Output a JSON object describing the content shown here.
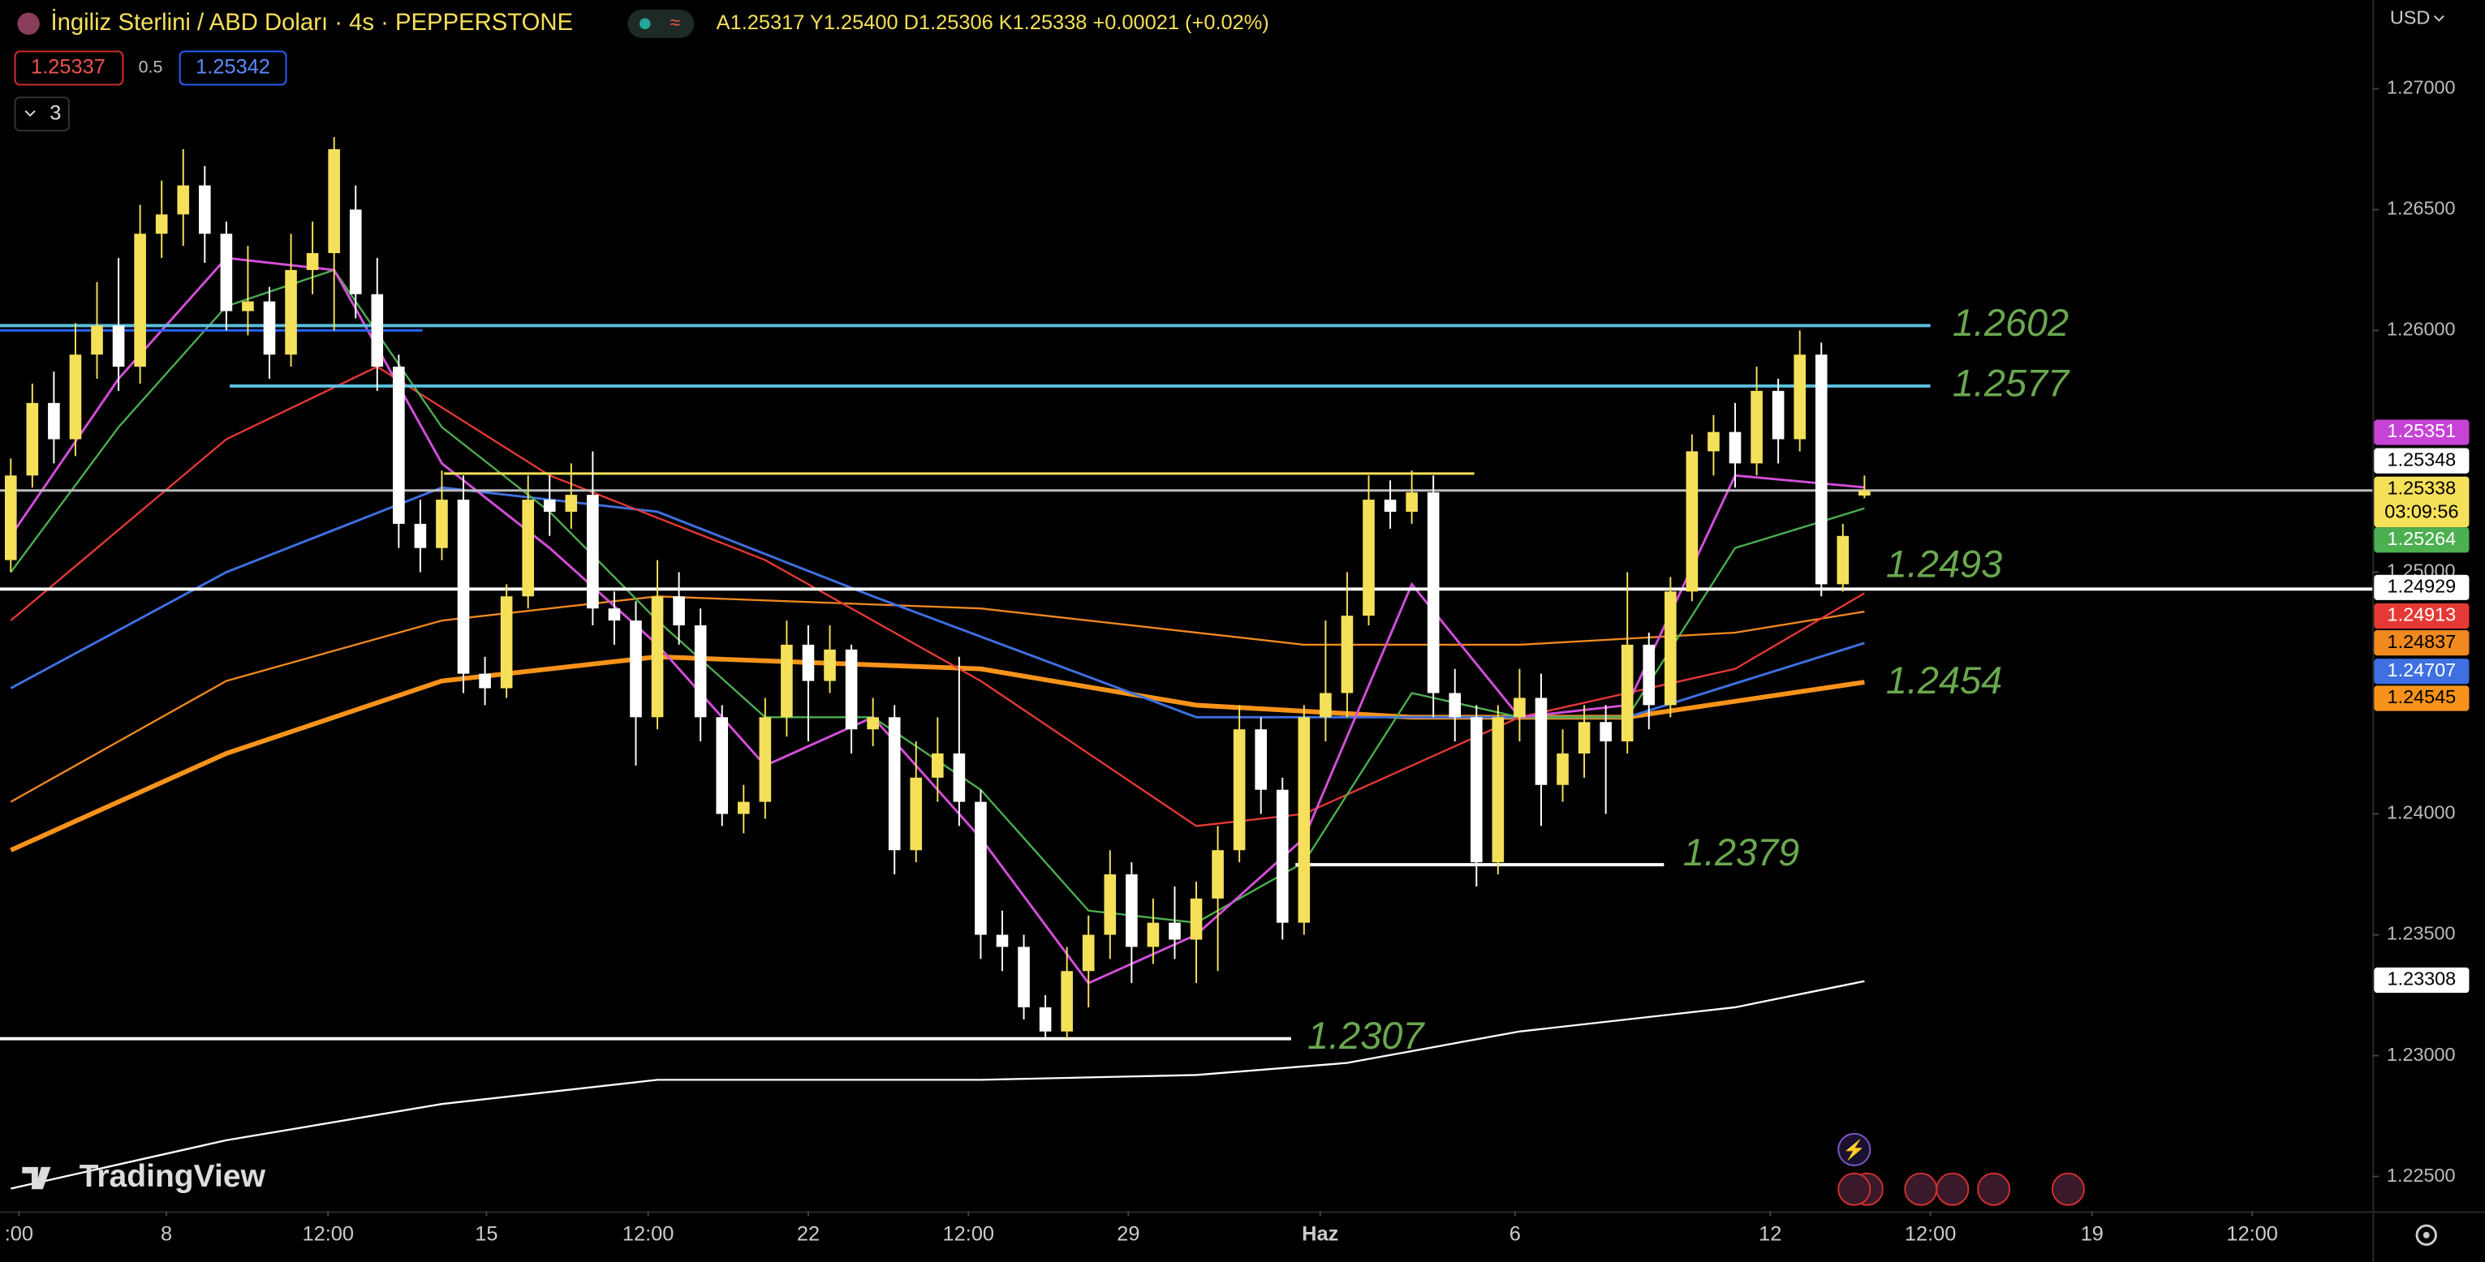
{
  "header": {
    "title": "İngiliz Sterlini / ABD Doları · 4s · PEPPERSTONE",
    "ohlc": "A1.25317 Y1.25400 D1.25306 K1.25338 +0.00021 (+0.02%)",
    "sell_price": "1.25337",
    "spread": "0.5",
    "buy_price": "1.25342",
    "indicators_count": "3",
    "currency": "USD",
    "brand": "TradingView"
  },
  "chart_data": {
    "type": "candlestick",
    "open": [
      1.2505,
      1.254,
      1.257,
      1.2555,
      1.259,
      1.2602,
      1.2585,
      1.264,
      1.2648,
      1.266,
      1.264,
      1.2608,
      1.2612,
      1.259,
      1.2625,
      1.2632,
      1.265,
      1.2615,
      1.2585,
      1.252,
      1.251,
      1.253,
      1.2458,
      1.2452,
      1.249,
      1.253,
      1.2525,
      1.2532,
      1.2485,
      1.248,
      1.244,
      1.249,
      1.2478,
      1.244,
      1.24,
      1.2405,
      1.244,
      1.247,
      1.2455,
      1.2468,
      1.2435,
      1.244,
      1.2385,
      1.2415,
      1.2425,
      1.2405,
      1.235,
      1.2345,
      1.232,
      1.231,
      1.2335,
      1.235,
      1.2375,
      1.2345,
      1.2355,
      1.2348,
      1.2365,
      1.2385,
      1.2435,
      1.241,
      1.2355,
      1.244,
      1.245,
      1.2482,
      1.253,
      1.2525,
      1.2533,
      1.245,
      1.244,
      1.238,
      1.244,
      1.2448,
      1.2412,
      1.2425,
      1.2438,
      1.243,
      1.247,
      1.2445,
      1.2492,
      1.255,
      1.2558,
      1.2545,
      1.2575,
      1.2555,
      1.259,
      1.2495,
      1.25317
    ],
    "high": [
      1.2547,
      1.2578,
      1.2583,
      1.2603,
      1.262,
      1.263,
      1.2652,
      1.2662,
      1.2675,
      1.2668,
      1.2645,
      1.2635,
      1.2618,
      1.264,
      1.2645,
      1.268,
      1.266,
      1.263,
      1.259,
      1.253,
      1.2542,
      1.254,
      1.2465,
      1.2495,
      1.254,
      1.254,
      1.2545,
      1.255,
      1.2492,
      1.2488,
      1.2505,
      1.25,
      1.2485,
      1.2445,
      1.2412,
      1.2448,
      1.248,
      1.2478,
      1.2478,
      1.247,
      1.2448,
      1.2445,
      1.243,
      1.244,
      1.2465,
      1.241,
      1.236,
      1.235,
      1.2325,
      1.2345,
      1.2358,
      1.2385,
      1.238,
      1.2365,
      1.237,
      1.2372,
      1.2395,
      1.2445,
      1.244,
      1.2415,
      1.2445,
      1.248,
      1.25,
      1.254,
      1.2538,
      1.2542,
      1.254,
      1.246,
      1.2445,
      1.2445,
      1.246,
      1.2458,
      1.2435,
      1.2445,
      1.2445,
      1.25,
      1.2475,
      1.2498,
      1.2557,
      1.2565,
      1.257,
      1.2585,
      1.258,
      1.26,
      1.2595,
      1.252,
      1.254
    ],
    "low": [
      1.25,
      1.2535,
      1.2545,
      1.2548,
      1.258,
      1.2575,
      1.2578,
      1.263,
      1.2635,
      1.2628,
      1.26,
      1.2598,
      1.258,
      1.2585,
      1.2615,
      1.26,
      1.2605,
      1.2575,
      1.251,
      1.25,
      1.2505,
      1.245,
      1.2445,
      1.2448,
      1.2485,
      1.2515,
      1.2518,
      1.2478,
      1.247,
      1.242,
      1.2435,
      1.247,
      1.243,
      1.2395,
      1.2392,
      1.2398,
      1.2432,
      1.243,
      1.245,
      1.2425,
      1.2428,
      1.2375,
      1.238,
      1.2405,
      1.2395,
      1.234,
      1.2335,
      1.2315,
      1.2307,
      1.2307,
      1.232,
      1.234,
      1.233,
      1.2338,
      1.234,
      1.233,
      1.2335,
      1.238,
      1.24,
      1.2348,
      1.235,
      1.243,
      1.244,
      1.2478,
      1.2518,
      1.252,
      1.244,
      1.243,
      1.237,
      1.2375,
      1.243,
      1.2395,
      1.2405,
      1.2415,
      1.24,
      1.2425,
      1.2435,
      1.244,
      1.2488,
      1.254,
      1.2535,
      1.254,
      1.2545,
      1.255,
      1.249,
      1.2492,
      1.25306
    ],
    "close": [
      1.254,
      1.257,
      1.2555,
      1.259,
      1.2602,
      1.2585,
      1.264,
      1.2648,
      1.266,
      1.264,
      1.2608,
      1.2612,
      1.259,
      1.2625,
      1.2632,
      1.2675,
      1.2615,
      1.2585,
      1.252,
      1.251,
      1.253,
      1.2458,
      1.2452,
      1.249,
      1.253,
      1.2525,
      1.2532,
      1.2485,
      1.248,
      1.244,
      1.249,
      1.2478,
      1.244,
      1.24,
      1.2405,
      1.244,
      1.247,
      1.2455,
      1.2468,
      1.2435,
      1.244,
      1.2385,
      1.2415,
      1.2425,
      1.2405,
      1.235,
      1.2345,
      1.232,
      1.231,
      1.2335,
      1.235,
      1.2375,
      1.2345,
      1.2355,
      1.2348,
      1.2365,
      1.2385,
      1.2435,
      1.241,
      1.2355,
      1.244,
      1.245,
      1.2482,
      1.253,
      1.2525,
      1.2533,
      1.245,
      1.244,
      1.238,
      1.244,
      1.2448,
      1.2412,
      1.2425,
      1.2438,
      1.243,
      1.247,
      1.2445,
      1.2492,
      1.255,
      1.2558,
      1.2545,
      1.2575,
      1.2555,
      1.259,
      1.2495,
      1.2515,
      1.25338
    ],
    "up_color": "#f5e05a",
    "down_color": "#ffffff",
    "lines": [
      {
        "color": "#ffffff",
        "width": 1.2,
        "x": [
          0,
          10,
          20,
          30,
          45,
          55,
          62,
          70,
          80,
          86
        ],
        "values": [
          1.2245,
          1.2265,
          1.228,
          1.229,
          1.229,
          1.2292,
          1.2297,
          1.231,
          1.232,
          1.23308
        ]
      },
      {
        "color": "#f7931a",
        "width": 3,
        "x": [
          0,
          10,
          20,
          30,
          45,
          55,
          65,
          75,
          86
        ],
        "values": [
          1.2385,
          1.2425,
          1.2455,
          1.2465,
          1.246,
          1.2445,
          1.244,
          1.244,
          1.24545
        ]
      },
      {
        "color": "#f0891e",
        "width": 1.2,
        "x": [
          0,
          10,
          20,
          30,
          45,
          60,
          70,
          80,
          86
        ],
        "values": [
          1.2405,
          1.2455,
          1.248,
          1.249,
          1.2485,
          1.247,
          1.247,
          1.2475,
          1.24837
        ]
      },
      {
        "color": "#3f6fe0",
        "width": 1.5,
        "x": [
          0,
          10,
          20,
          30,
          40,
          55,
          65,
          75,
          86
        ],
        "values": [
          1.2452,
          1.25,
          1.2535,
          1.2525,
          1.249,
          1.244,
          1.244,
          1.244,
          1.24707
        ]
      },
      {
        "color": "#e53935",
        "width": 1.2,
        "x": [
          0,
          10,
          17,
          25,
          35,
          45,
          55,
          60,
          65,
          70,
          80,
          86
        ],
        "values": [
          1.248,
          1.2555,
          1.2585,
          1.254,
          1.2505,
          1.2455,
          1.2395,
          1.24,
          1.242,
          1.244,
          1.246,
          1.24913
        ]
      },
      {
        "color": "#4caf50",
        "width": 1.2,
        "x": [
          0,
          5,
          10,
          15,
          20,
          25,
          30,
          35,
          40,
          45,
          50,
          55,
          60,
          65,
          70,
          75,
          80,
          86
        ],
        "values": [
          1.25,
          1.256,
          1.261,
          1.2625,
          1.256,
          1.2525,
          1.248,
          1.244,
          1.244,
          1.241,
          1.236,
          1.2355,
          1.238,
          1.245,
          1.244,
          1.244,
          1.251,
          1.25264
        ]
      },
      {
        "color": "#d34ed9",
        "width": 1.5,
        "x": [
          0,
          5,
          10,
          15,
          20,
          25,
          30,
          35,
          40,
          45,
          50,
          55,
          60,
          65,
          70,
          75,
          80,
          86
        ],
        "values": [
          1.2515,
          1.258,
          1.263,
          1.2625,
          1.2545,
          1.251,
          1.247,
          1.242,
          1.244,
          1.239,
          1.233,
          1.235,
          1.239,
          1.2495,
          1.244,
          1.2445,
          1.254,
          1.25351
        ]
      }
    ],
    "hlines": [
      {
        "value": 1.26,
        "color": "#2962ff",
        "x": [
          -0.5,
          19.1
        ]
      },
      {
        "value": 1.25408,
        "color": "#f5e05a",
        "x": [
          20.1,
          67.9
        ]
      },
      {
        "value": 1.25338,
        "color": "#bbbbbb",
        "x": [
          -0.5,
          109.57
        ]
      }
    ],
    "levels": [
      {
        "value": 1.2602,
        "color": "#5bc0de",
        "x": [
          -0.5,
          89.06
        ]
      },
      {
        "value": 1.2577,
        "color": "#5bc0de",
        "x": [
          10.16,
          89.06
        ]
      },
      {
        "value": 1.2493,
        "color": "#ffffff",
        "x": [
          -0.5,
          109.57
        ]
      },
      {
        "value": 1.2454
      },
      {
        "value": 1.2379,
        "color": "#ffffff",
        "x": [
          59.6,
          76.7
        ]
      },
      {
        "value": 1.2307,
        "color": "#ffffff",
        "x": [
          -0.5,
          59.4
        ]
      }
    ],
    "level_label_color": "#6aa84f",
    "price_labels": [
      {
        "value": 1.25351,
        "color": "#c643d6",
        "text_color": "#ffffff"
      },
      {
        "value": 1.25348,
        "color": "#ffffff",
        "text_color": "#000000"
      },
      {
        "value": 1.25338,
        "color": "#f5e05a",
        "text_color": "#000000"
      },
      {
        "value": 1.25264,
        "color": "#4caf50",
        "text_color": "#ffffff"
      },
      {
        "value": 1.24929,
        "color": "#ffffff",
        "text_color": "#000000"
      },
      {
        "value": 1.24913,
        "color": "#e53935",
        "text_color": "#ffffff"
      },
      {
        "value": 1.24837,
        "color": "#f0891e",
        "text_color": "#000000"
      },
      {
        "value": 1.24707,
        "color": "#3f6fe0",
        "text_color": "#ffffff"
      },
      {
        "value": 1.24545,
        "color": "#f7931a",
        "text_color": "#000000"
      },
      {
        "value": 1.23308,
        "color": "#ffffff",
        "text_color": "#000000"
      }
    ],
    "countdown": "03:09:56",
    "xlim": [
      -0.5,
      109.57
    ],
    "ylim": [
      1.22356,
      1.27367
    ],
    "xticks": [
      {
        "value": 0.38,
        "label": ":00"
      },
      {
        "value": 7.22,
        "label": "8"
      },
      {
        "value": 14.72,
        "label": "12:00"
      },
      {
        "value": 22.07,
        "label": "15"
      },
      {
        "value": 29.57,
        "label": "12:00"
      },
      {
        "value": 37.0,
        "label": "22"
      },
      {
        "value": 44.43,
        "label": "12:00"
      },
      {
        "value": 51.85,
        "label": "29"
      },
      {
        "value": 60.75,
        "label": "Haz"
      },
      {
        "value": 69.79,
        "label": "6"
      },
      {
        "value": 81.63,
        "label": "12"
      },
      {
        "value": 89.06,
        "label": "12:00"
      },
      {
        "value": 96.56,
        "label": "19"
      },
      {
        "value": 103.99,
        "label": "12:00"
      }
    ],
    "yticks": [
      {
        "value": 1.27,
        "label": "1.27000"
      },
      {
        "value": 1.265,
        "label": "1.26500"
      },
      {
        "value": 1.26,
        "label": "1.26000"
      },
      {
        "value": 1.25,
        "label": "1.25000"
      },
      {
        "value": 1.24,
        "label": "1.24000"
      },
      {
        "value": 1.235,
        "label": "1.23500"
      },
      {
        "value": 1.23,
        "label": "1.23000"
      },
      {
        "value": 1.225,
        "label": "1.22500"
      }
    ]
  }
}
